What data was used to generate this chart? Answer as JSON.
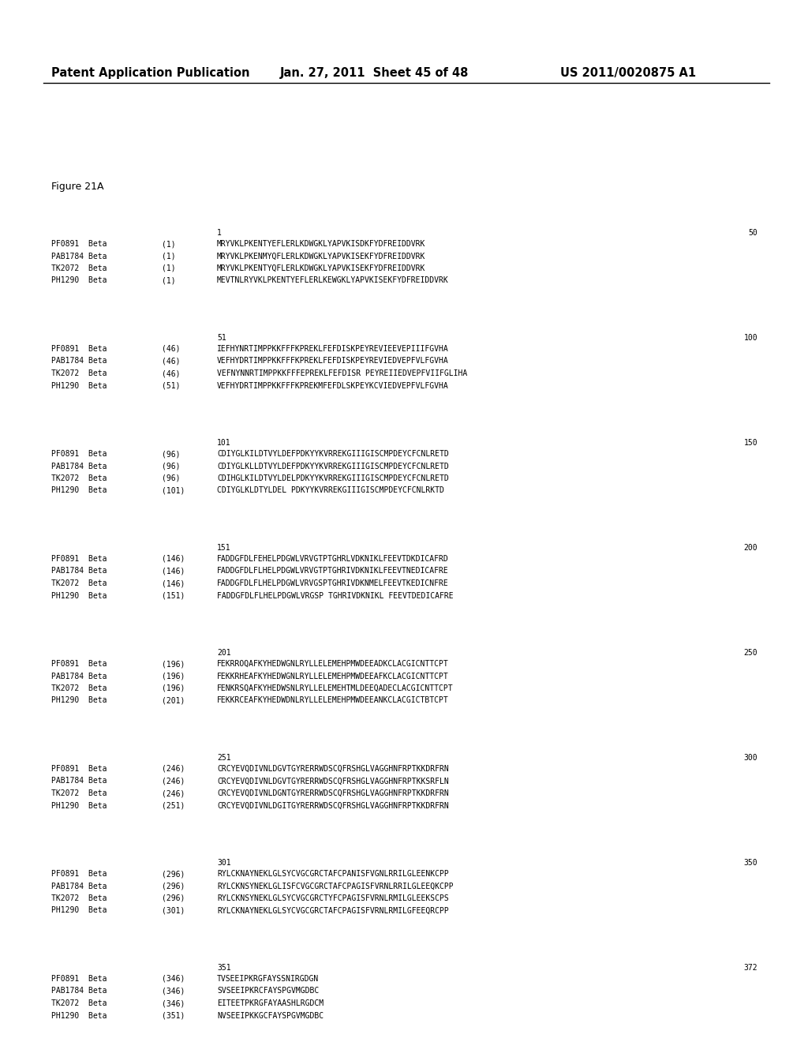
{
  "header_left": "Patent Application Publication",
  "header_mid": "Jan. 27, 2011  Sheet 45 of 48",
  "header_right": "US 2011/0020875 A1",
  "figure_label": "Figure 21A",
  "background_color": "#ffffff",
  "alignment_blocks": [
    {
      "ruler_start": "1",
      "ruler_end": "50",
      "rows": [
        {
          "name": "PF0891  Beta",
          "start": "(1)",
          "seq": "MRYVKLPKENTYEFLERLKDWGKLYAPVKISDKFYDFREIDDVRK"
        },
        {
          "name": "PAB1784 Beta",
          "start": "(1)",
          "seq": "MRYVKLPKENMYQFLERLKDWGKLYAPVKISEKFYDFREIDDVRK"
        },
        {
          "name": "TK2072  Beta",
          "start": "(1)",
          "seq": "MRYVKLPKENTYQFLERLKDWGKLYAPVKISEKFYDFREIDDVRK"
        },
        {
          "name": "PH1290  Beta",
          "start": "(1)",
          "seq": "MEVTNLRYVKLPKENTYEFLERLKEWGKLYAPVKISEKFYDFREIDDVRK"
        }
      ]
    },
    {
      "ruler_start": "51",
      "ruler_end": "100",
      "rows": [
        {
          "name": "PF0891  Beta",
          "start": "(46)",
          "seq": "IEFHYNRTIMPPKKFFFKPREKLFEFDISKPEYREVIEEVEPIIIFGVHA"
        },
        {
          "name": "PAB1784 Beta",
          "start": "(46)",
          "seq": "VEFHYDRTIMPPKKFFFKPREKLFEFDISKPEYREVIEDVEPFVLFGVHA"
        },
        {
          "name": "TK2072  Beta",
          "start": "(46)",
          "seq": "VEFNYNNRTIMPPKKFFFEPREKLFEFDISR PEYREIIEDVEPFVIIFGLIHA"
        },
        {
          "name": "PH1290  Beta",
          "start": "(51)",
          "seq": "VEFHYDRTIMPPKKFFFKPREKMFEFDLSKPEYKCVIEDVEPFVLFGVHA"
        }
      ]
    },
    {
      "ruler_start": "101",
      "ruler_end": "150",
      "rows": [
        {
          "name": "PF0891  Beta",
          "start": "(96)",
          "seq": "CDIYGLKILDTVYLDEFPDKYYKVRREKGIIIGISCMPDEYCFCNLRETD"
        },
        {
          "name": "PAB1784 Beta",
          "start": "(96)",
          "seq": "CDIYGLKLLDTVYLDEFPDKYYKVRREKGIIIGISCMPDEYCFCNLRETD"
        },
        {
          "name": "TK2072  Beta",
          "start": "(96)",
          "seq": "CDIHGLKILDTVYLDELPDKYYKVRREKGIIIGISCMPDEYCFCNLRETD"
        },
        {
          "name": "PH1290  Beta",
          "start": "(101)",
          "seq": "CDIYGLKLDTYLDEL PDKYYKVRREKGIIIGISCMPDEYCFCNLRKTD"
        }
      ]
    },
    {
      "ruler_start": "151",
      "ruler_end": "200",
      "rows": [
        {
          "name": "PF0891  Beta",
          "start": "(146)",
          "seq": "FADDGFDLFEHELPDGWLVRVGTPTGHRLVDKNIKLFEEVTDKDICAFRD"
        },
        {
          "name": "PAB1784 Beta",
          "start": "(146)",
          "seq": "FADDGFDLFLHELPDGWLVRVGTPTGHRIVDKNIKLFEEVTNEDICAFRE"
        },
        {
          "name": "TK2072  Beta",
          "start": "(146)",
          "seq": "FADDGFDLFLHELPDGWLVRVGSPTGHRIVDKNMELFEEVTKEDICNFRE"
        },
        {
          "name": "PH1290  Beta",
          "start": "(151)",
          "seq": "FADDGFDLFLHELPDGWLVRGSP TGHRIVDKNIKL FEEVTDEDICAFRE"
        }
      ]
    },
    {
      "ruler_start": "201",
      "ruler_end": "250",
      "rows": [
        {
          "name": "PF0891  Beta",
          "start": "(196)",
          "seq": "FEKRROQAFKYHEDWGNLRYLLELEMEHPMWDEEADKCLACGICNTTCPT"
        },
        {
          "name": "PAB1784 Beta",
          "start": "(196)",
          "seq": "FEKKRHEAFKYHEDWGNLRYLLELEMEHPMWDEEAFKCLACGICNTTCPT"
        },
        {
          "name": "TK2072  Beta",
          "start": "(196)",
          "seq": "FENKRSQAFKYHEDWSNLRYLLELEMEHTMLDEEQADECLACGICNTTCPT"
        },
        {
          "name": "PH1290  Beta",
          "start": "(201)",
          "seq": "FEKKRCEAFKYHEDWDNLRYLLELEMEHPMWDEEANKCLACGICTBTCPT"
        }
      ]
    },
    {
      "ruler_start": "251",
      "ruler_end": "300",
      "rows": [
        {
          "name": "PF0891  Beta",
          "start": "(246)",
          "seq": "CRCYEVQDIVNLDGVTGYRERRWDSCQFRSHGLVAGGHNFRPTKKDRFRN"
        },
        {
          "name": "PAB1784 Beta",
          "start": "(246)",
          "seq": "CRCYEVQDIVNLDGVTGYRERRWDSCQFRSHGLVAGGHNFRPTKKSRFLN"
        },
        {
          "name": "TK2072  Beta",
          "start": "(246)",
          "seq": "CRCYEVQDIVNLDGNTGYRERRWDSCQFRSHGLVAGGHNFRPTKKDRFRN"
        },
        {
          "name": "PH1290  Beta",
          "start": "(251)",
          "seq": "CRCYEVQDIVNLDGITGYRERRWDSCQFRSHGLVAGGHNFRPTKKDRFRN"
        }
      ]
    },
    {
      "ruler_start": "301",
      "ruler_end": "350",
      "rows": [
        {
          "name": "PF0891  Beta",
          "start": "(296)",
          "seq": "RYLCKNAYNEKLGLSYCVGCGRCTAFCPANISFVGNLRRILGLEENKCPP"
        },
        {
          "name": "PAB1784 Beta",
          "start": "(296)",
          "seq": "RYLCKNSYNEKLGLISFCVGCGRCTAFCPAGISFVRNLRRILGLEEQKCPP"
        },
        {
          "name": "TK2072  Beta",
          "start": "(296)",
          "seq": "RYLCKNSYNEKLGLSYCVGCGRCTYFCPAGISFVRNLRMILGLEEKSCPS"
        },
        {
          "name": "PH1290  Beta",
          "start": "(301)",
          "seq": "RYLCKNAYNEKLGLSYCVGCGRCTAFCPAGISFVRNLRMILGFEEQRCPP"
        }
      ]
    },
    {
      "ruler_start": "351",
      "ruler_end": "372",
      "rows": [
        {
          "name": "PF0891  Beta",
          "start": "(346)",
          "seq": "TVSEEIPKRGFAYSSNIRGDGN"
        },
        {
          "name": "PAB1784 Beta",
          "start": "(346)",
          "seq": "SVSEEIPKRCFAYSPGVMGDBC"
        },
        {
          "name": "TK2072  Beta",
          "start": "(346)",
          "seq": "EITEETPKRGFAYAASHLRGDCM"
        },
        {
          "name": "PH1290  Beta",
          "start": "(351)",
          "seq": "NVSEEIPKKGCFAYSPGVMGDBC"
        }
      ]
    }
  ]
}
